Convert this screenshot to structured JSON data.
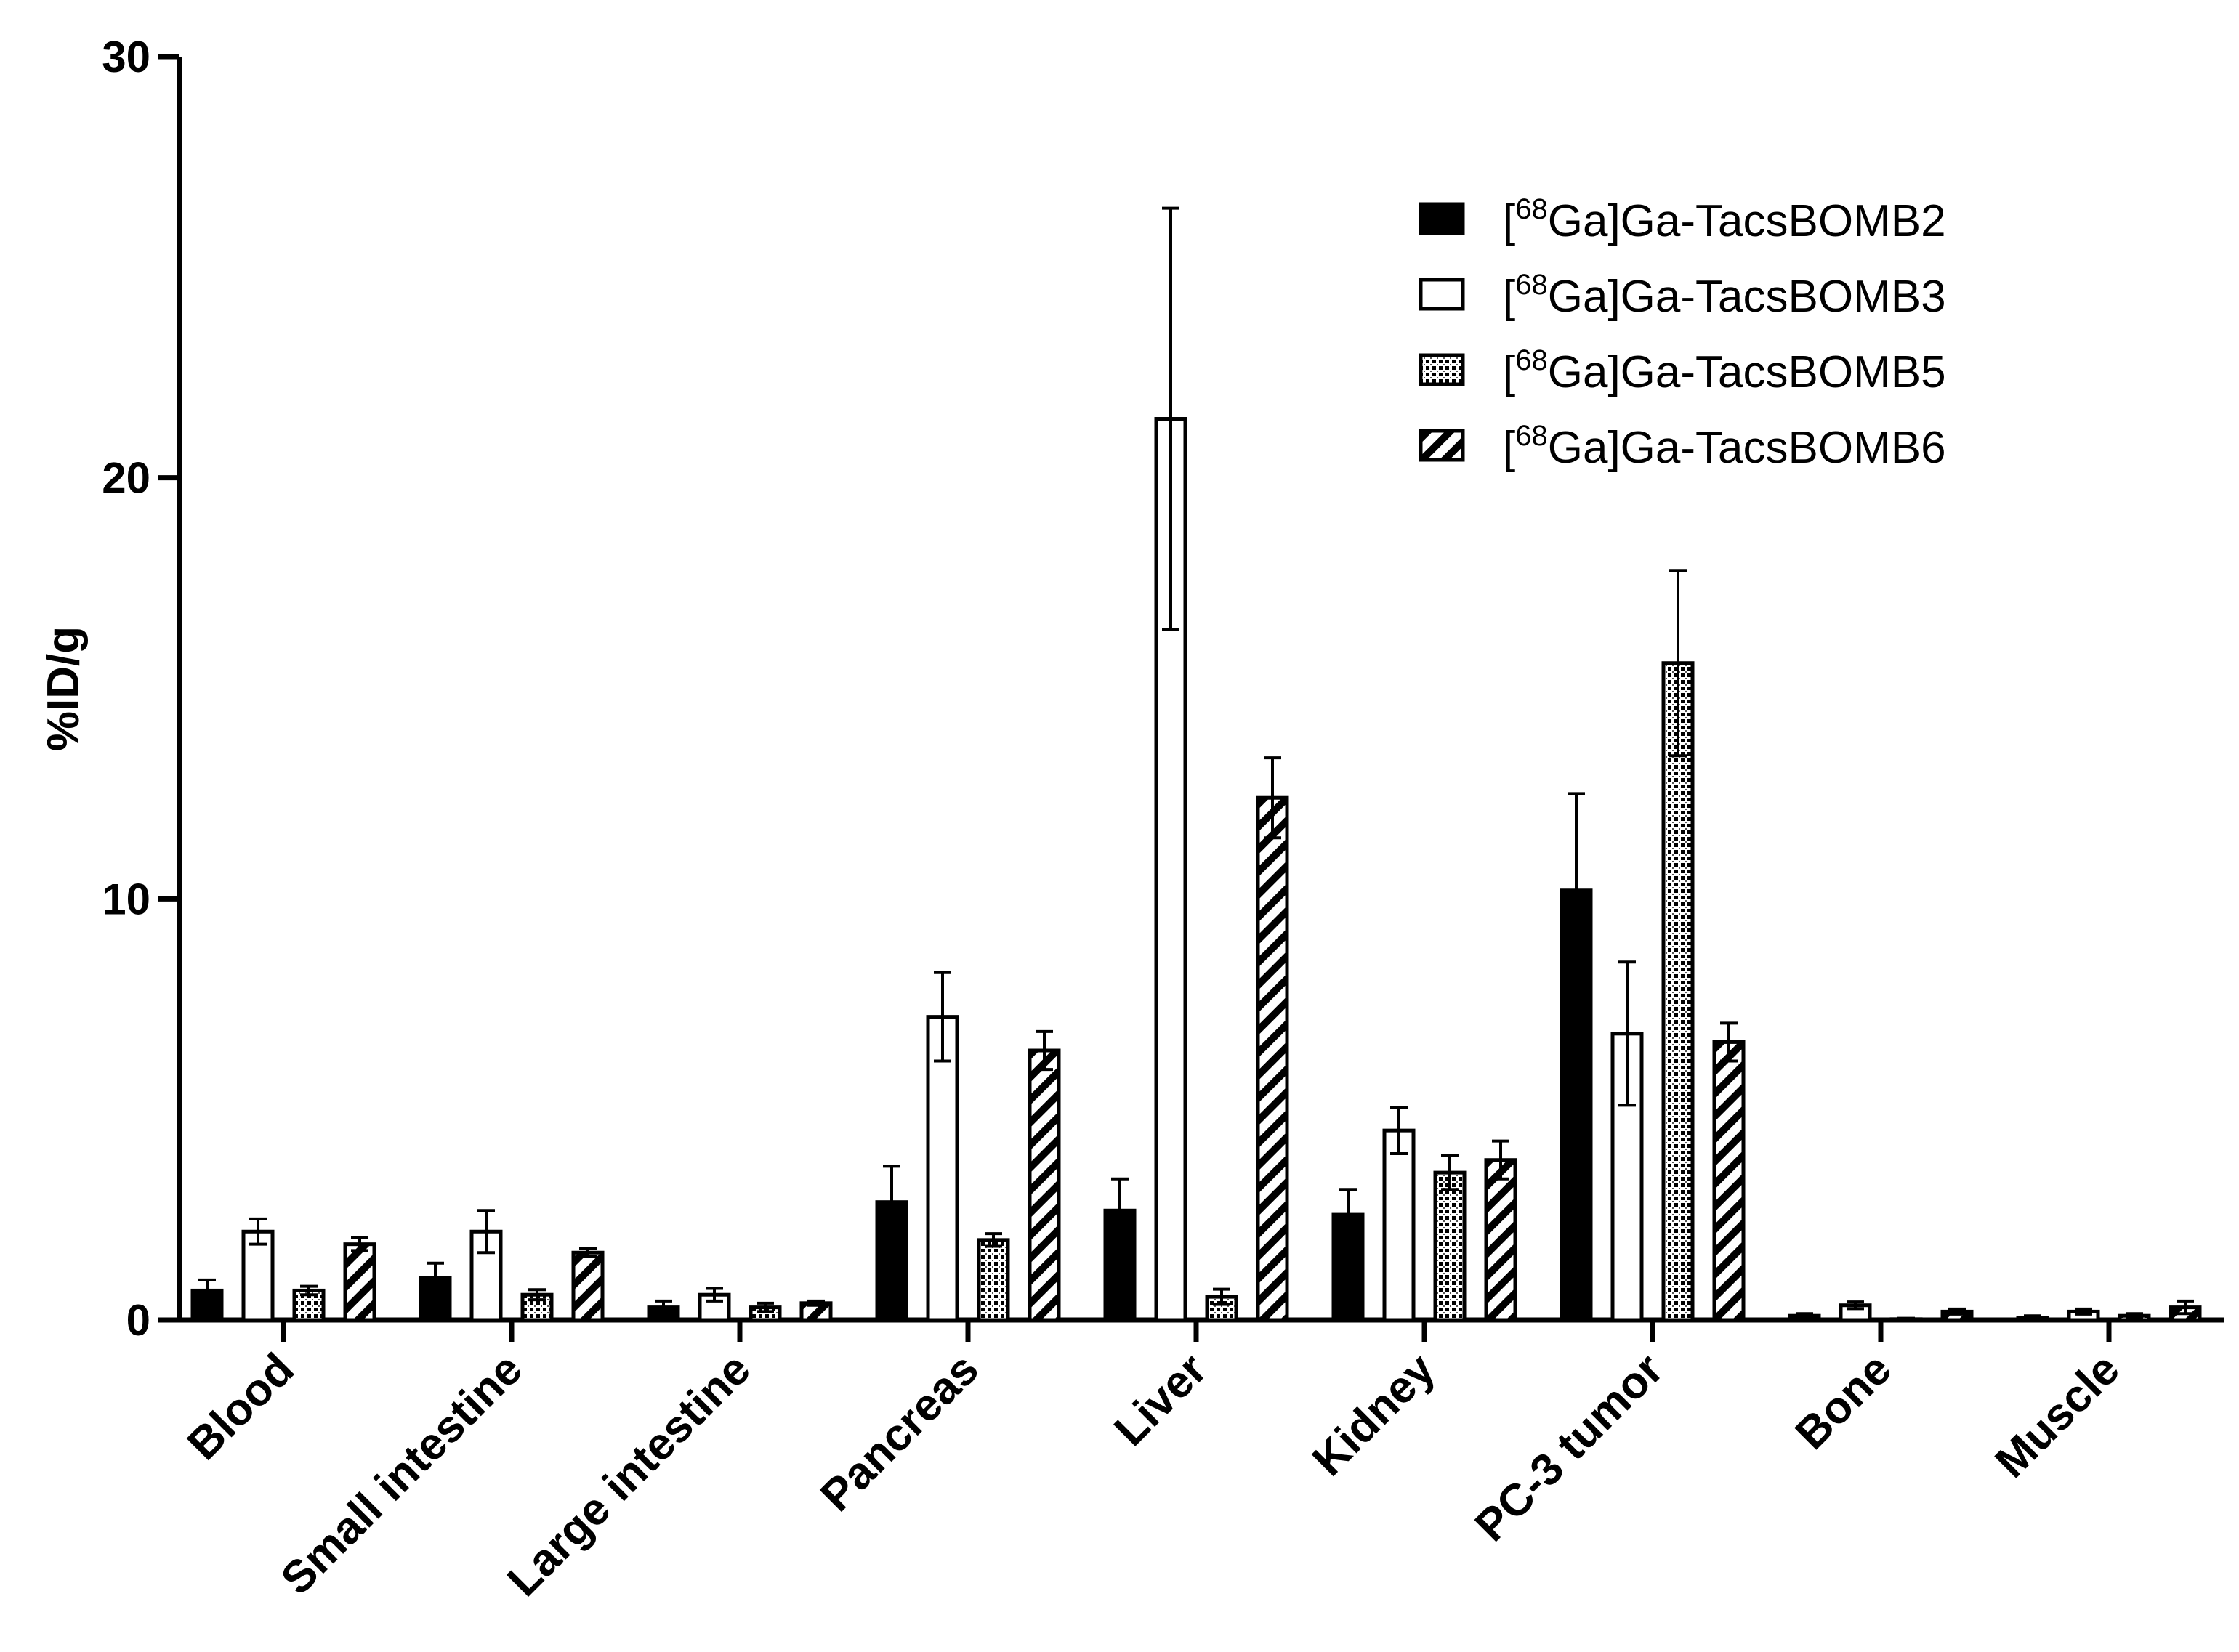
{
  "chart_data": {
    "type": "bar",
    "title": "",
    "xlabel": "",
    "ylabel": "%ID/g",
    "ylim": [
      0,
      30
    ],
    "yticks": [
      0,
      10,
      20,
      30
    ],
    "yticklabels": [
      "0",
      "10",
      "20",
      "30"
    ],
    "grid": false,
    "legend_position": "top-right",
    "categories": [
      "Blood",
      "Small intestine",
      "Large intestine",
      "Pancreas",
      "Liver",
      "Kidney",
      "PC-3 tumor",
      "Bone",
      "Muscle"
    ],
    "series": [
      {
        "name": "[68Ga]Ga-TacsBOMB2",
        "label_prefix": "[",
        "label_sup": "68",
        "label_main": "Ga]Ga-TacsBOMB2",
        "pattern": "solid-black",
        "values": [
          0.7,
          1.0,
          0.3,
          2.8,
          2.6,
          2.5,
          10.2,
          0.1,
          0.05
        ],
        "errors": [
          0.25,
          0.35,
          0.15,
          0.85,
          0.75,
          0.6,
          2.3,
          0.05,
          0.05
        ]
      },
      {
        "name": "[68Ga]Ga-TacsBOMB3",
        "label_prefix": "[",
        "label_sup": "68",
        "label_main": "Ga]Ga-TacsBOMB3",
        "pattern": "open-white",
        "values": [
          2.1,
          2.1,
          0.6,
          7.2,
          21.4,
          4.5,
          6.8,
          0.35,
          0.2
        ],
        "errors": [
          0.3,
          0.5,
          0.15,
          1.05,
          5.0,
          0.55,
          1.7,
          0.08,
          0.06
        ]
      },
      {
        "name": "[68Ga]Ga-TacsBOMB5",
        "label_prefix": "[",
        "label_sup": "68",
        "label_main": "Ga]Ga-TacsBOMB5",
        "pattern": "dotted-grid",
        "values": [
          0.7,
          0.6,
          0.3,
          1.9,
          0.55,
          3.5,
          15.6,
          0.02,
          0.1
        ],
        "errors": [
          0.1,
          0.12,
          0.1,
          0.15,
          0.18,
          0.4,
          2.2,
          0.02,
          0.05
        ]
      },
      {
        "name": "[68Ga]Ga-TacsBOMB6",
        "label_prefix": "[",
        "label_sup": "68",
        "label_main": "Ga]Ga-TacsBOMB6",
        "pattern": "diagonal-hatch",
        "values": [
          1.8,
          1.6,
          0.4,
          6.4,
          12.4,
          3.8,
          6.6,
          0.2,
          0.3
        ],
        "errors": [
          0.15,
          0.1,
          0.05,
          0.45,
          0.95,
          0.45,
          0.45,
          0.06,
          0.15
        ]
      }
    ]
  }
}
